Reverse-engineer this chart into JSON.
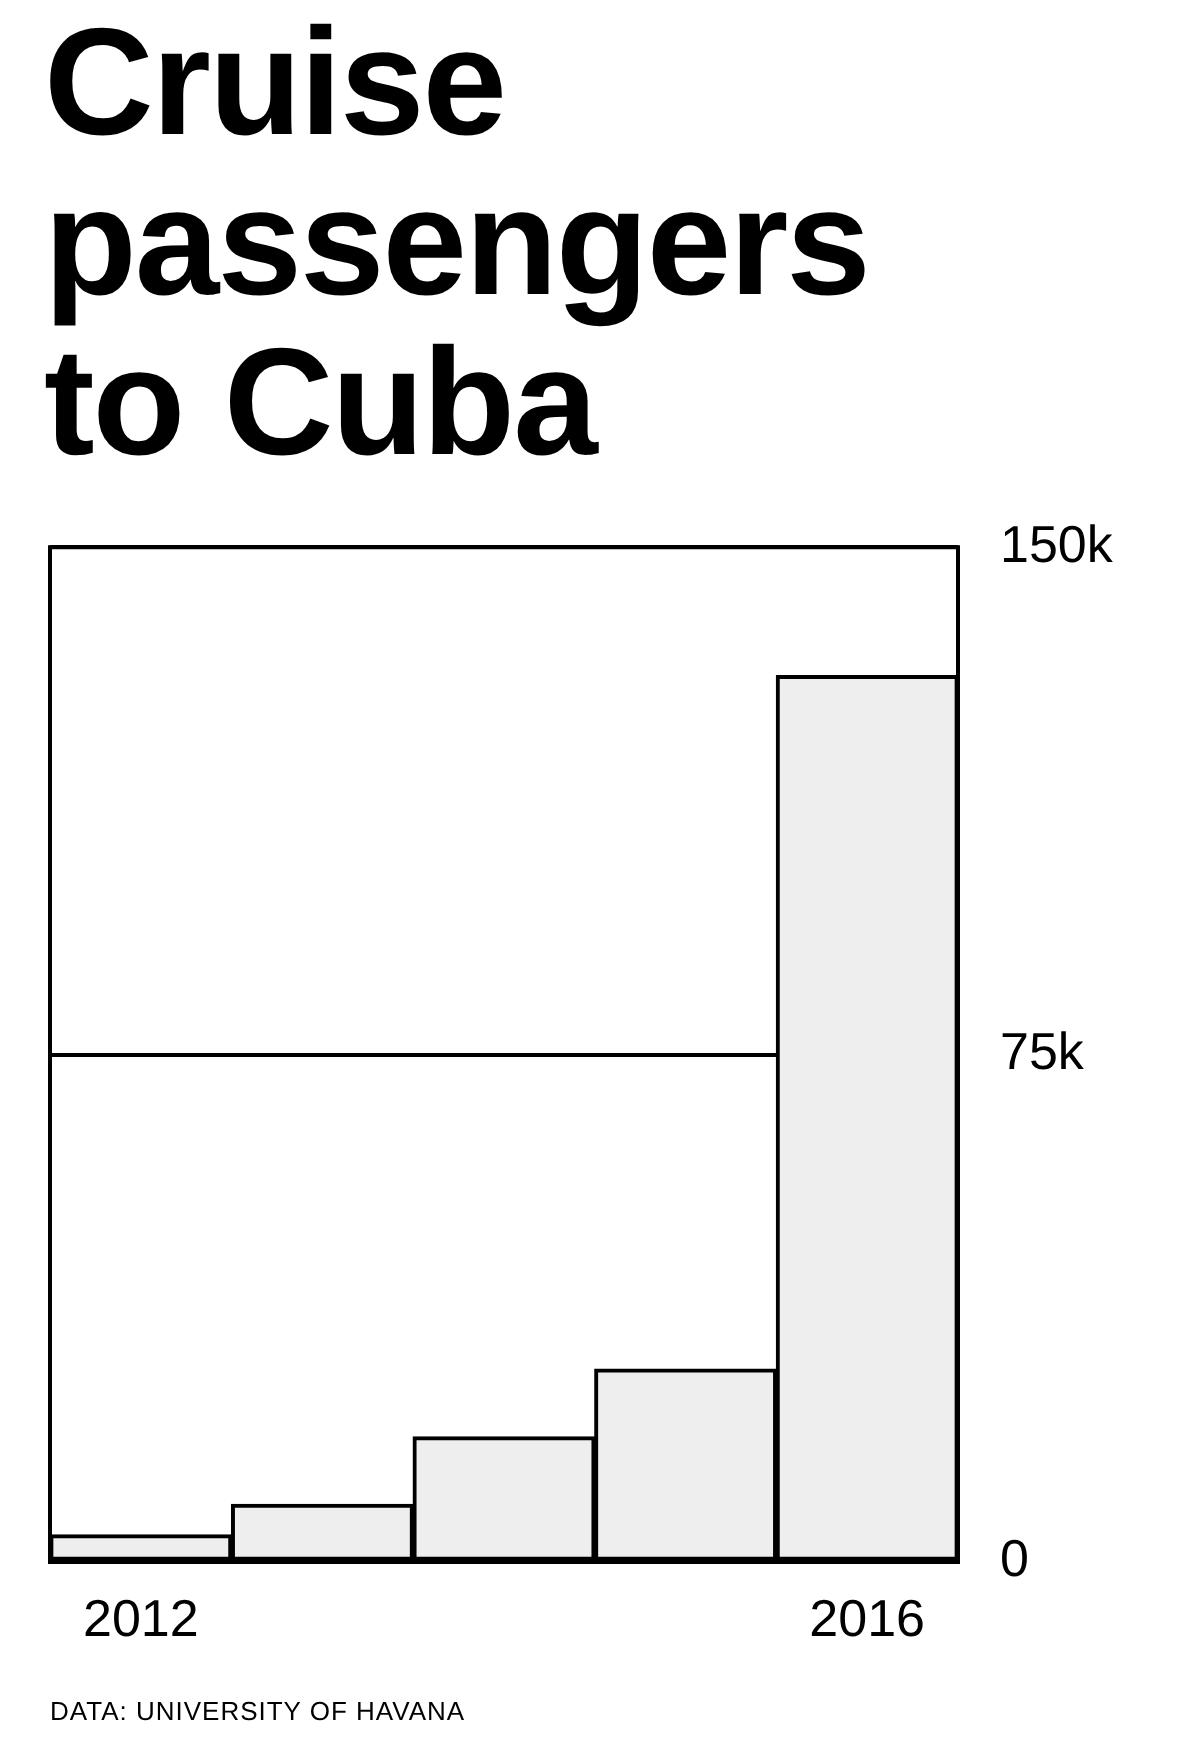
{
  "chart_data": {
    "type": "bar",
    "title": "Cruise passengers to Cuba",
    "categories": [
      "2012",
      null,
      null,
      null,
      "2016"
    ],
    "values": [
      4000,
      8500,
      18500,
      28500,
      131000
    ],
    "color": "#eeeeee",
    "ylim": [
      0,
      150000
    ],
    "yticks": [
      0,
      {
        "value": 75000,
        "label": "75k"
      },
      {
        "value": 150000,
        "label": "150k"
      }
    ],
    "grid": "y",
    "annotations": [
      "DATA: UNIVERSITY OF HAVANA"
    ]
  }
}
